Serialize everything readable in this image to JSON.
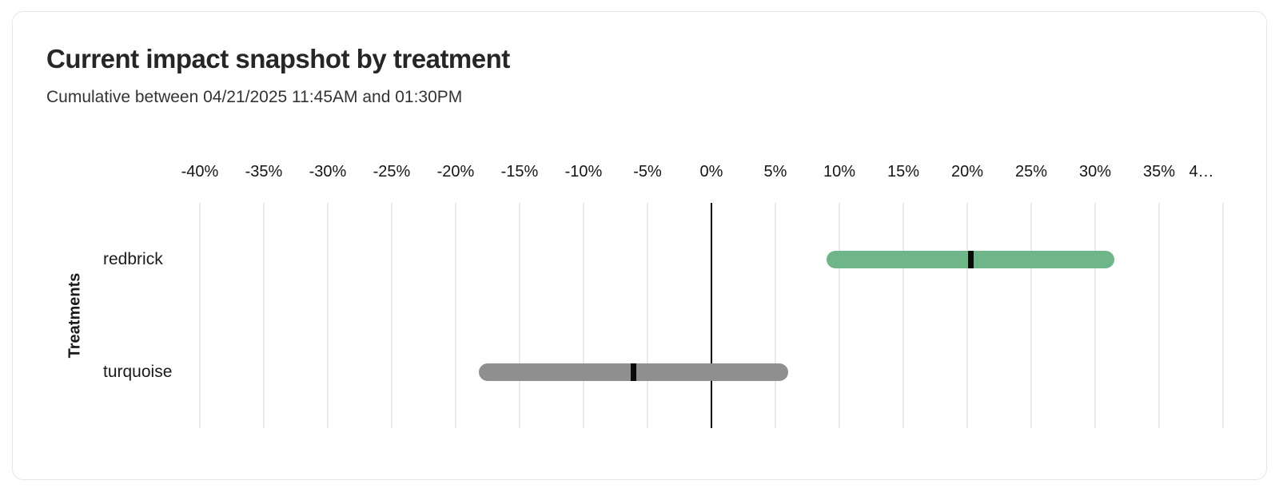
{
  "card": {
    "title": "Current impact snapshot by treatment",
    "subtitle": "Cumulative between 04/21/2025 11:45AM and 01:30PM"
  },
  "chart_data": {
    "type": "range_bar",
    "orientation": "horizontal",
    "title": "Current impact snapshot by treatment",
    "subtitle": "Cumulative between 04/21/2025 11:45AM and 01:30PM",
    "ylabel": "Treatments",
    "xlabel": "",
    "axis": {
      "unit": "%",
      "min": -40,
      "max": 40,
      "tick_step": 5,
      "tick_labels": [
        "-40%",
        "-35%",
        "-30%",
        "-25%",
        "-20%",
        "-15%",
        "-10%",
        "-5%",
        "0%",
        "5%",
        "10%",
        "15%",
        "20%",
        "25%",
        "30%",
        "35%",
        "4…"
      ]
    },
    "categories": [
      "redbrick",
      "turquoise"
    ],
    "series": [
      {
        "name": "redbrick",
        "low": 9.0,
        "high": 31.5,
        "point": 20.3,
        "color": "#6fb58a"
      },
      {
        "name": "turquoise",
        "low": -18.2,
        "high": 6.0,
        "point": -6.1,
        "color": "#8f8f8f"
      }
    ],
    "colors": {
      "marker": "#0a0a0a",
      "gridline": "#ebebeb",
      "zero_line": "#000000"
    },
    "grid": "vertical-only",
    "legend": "none"
  }
}
